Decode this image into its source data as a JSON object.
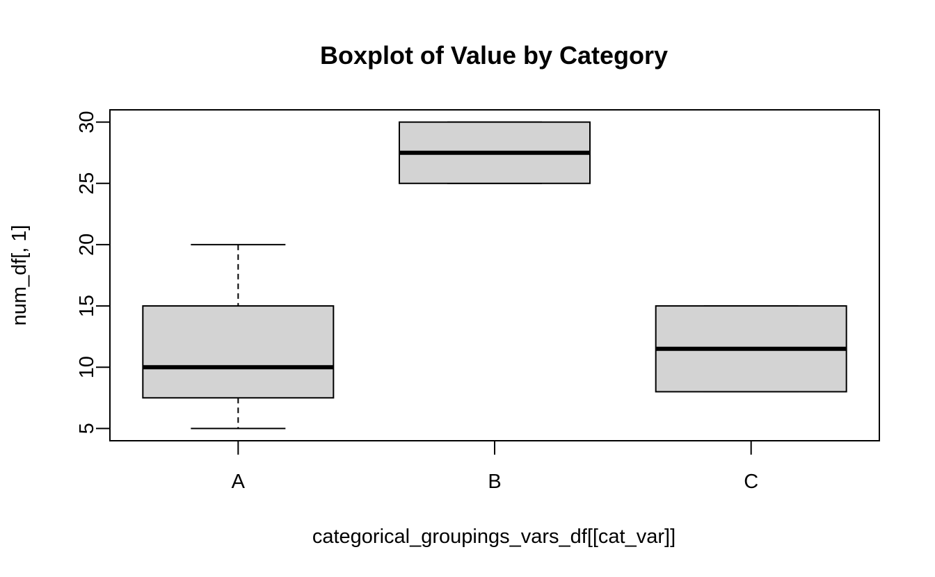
{
  "chart_data": {
    "type": "boxplot",
    "title": "Boxplot of Value by Category",
    "xlabel": "categorical_groupings_vars_df[[cat_var]]",
    "ylabel": "num_df[, 1]",
    "categories": [
      "A",
      "B",
      "C"
    ],
    "boxes": [
      {
        "category": "A",
        "whisker_low": 5,
        "q1": 7.5,
        "median": 10,
        "q3": 15,
        "whisker_high": 20
      },
      {
        "category": "B",
        "whisker_low": 25,
        "q1": 25,
        "median": 27.5,
        "q3": 30,
        "whisker_high": 30
      },
      {
        "category": "C",
        "whisker_low": 8,
        "q1": 8,
        "median": 11.5,
        "q3": 15,
        "whisker_high": 15
      }
    ],
    "yticks": [
      5,
      10,
      15,
      20,
      25,
      30
    ],
    "ylim": [
      4,
      31
    ],
    "grid": false,
    "colors": {
      "box_fill": "#d3d3d3",
      "stroke": "#000000",
      "background": "#ffffff"
    }
  }
}
